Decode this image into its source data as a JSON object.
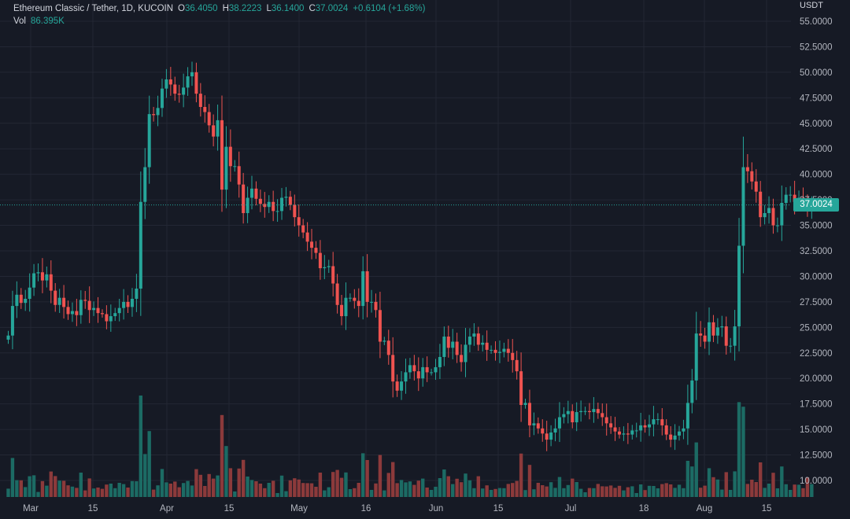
{
  "legend": {
    "symbol": "Ethereum Classic / Tether, 1D, KUCOIN",
    "open_label": "O",
    "open": "36.4050",
    "high_label": "H",
    "high": "38.2223",
    "low_label": "L",
    "low": "36.1400",
    "close_label": "C",
    "close": "37.0024",
    "change": "+0.6104 (+1.68%)",
    "volume_label": "Vol",
    "volume": "86.395K"
  },
  "axis": {
    "currency": "USDT",
    "last_price": "37.0024"
  },
  "colors": {
    "background": "#161a25",
    "grid": "#232734",
    "up": "#26a69a",
    "down": "#ef5350",
    "volume_up": "#1c6b64",
    "volume_down": "#8c3a3b",
    "axis_text": "#b2b5be"
  },
  "chart_data": {
    "type": "candlestick",
    "title": "Ethereum Classic / Tether, 1D, KUCOIN",
    "ylabel": "USDT",
    "ylim": [
      8.8,
      56
    ],
    "y_ticks": [
      "55.0000",
      "52.5000",
      "50.0000",
      "47.5000",
      "45.0000",
      "42.5000",
      "40.0000",
      "37.5000",
      "35.0000",
      "32.5000",
      "30.0000",
      "27.5000",
      "25.0000",
      "22.5000",
      "20.0000",
      "17.5000",
      "15.0000",
      "12.5000",
      "10.0000"
    ],
    "x_ticks": [
      "Mar",
      "15",
      "Apr",
      "15",
      "May",
      "16",
      "Jun",
      "15",
      "Jul",
      "18",
      "Aug",
      "15"
    ],
    "last_price": 37.0024,
    "grid": true,
    "candles_close": [
      24.2,
      27.1,
      28.2,
      27.4,
      27.8,
      28.9,
      30.3,
      30.4,
      29.6,
      30.2,
      28.6,
      27.2,
      27.9,
      27.0,
      26.3,
      26.6,
      26.2,
      27.7,
      27.6,
      26.7,
      26.9,
      26.4,
      26.3,
      25.6,
      26.1,
      26.4,
      26.9,
      27.5,
      27.0,
      27.8,
      28.8,
      37.3,
      40.7,
      45.9,
      45.8,
      46.5,
      48.4,
      49.3,
      48.8,
      47.9,
      47.8,
      48.5,
      49.6,
      50.0,
      47.9,
      46.6,
      46.1,
      44.8,
      43.7,
      45.3,
      38.5,
      42.7,
      40.8,
      40.8,
      39.0,
      36.2,
      37.7,
      38.6,
      37.6,
      37.1,
      36.8,
      37.3,
      36.4,
      36.4,
      37.7,
      37.8,
      37.0,
      35.8,
      35.0,
      34.3,
      33.4,
      32.8,
      32.3,
      30.8,
      30.9,
      31.0,
      29.3,
      27.2,
      26.1,
      27.9,
      27.9,
      27.6,
      27.1,
      30.5,
      27.5,
      27.5,
      26.7,
      23.6,
      23.7,
      22.3,
      19.7,
      18.8,
      19.7,
      20.6,
      21.3,
      20.7,
      20.0,
      21.1,
      20.6,
      20.6,
      21.1,
      22.1,
      24.1,
      23.0,
      23.6,
      22.3,
      21.6,
      23.3,
      24.1,
      24.4,
      23.3,
      23.5,
      22.8,
      22.8,
      22.5,
      22.6,
      22.9,
      22.5,
      21.8,
      20.7,
      17.4,
      17.6,
      15.4,
      15.6,
      15.1,
      14.6,
      14.0,
      14.7,
      15.1,
      16.2,
      16.5,
      16.8,
      15.7,
      16.7,
      16.8,
      16.8,
      16.7,
      17.0,
      16.6,
      16.2,
      15.6,
      15.2,
      14.8,
      14.5,
      14.6,
      14.5,
      14.9,
      14.9,
      15.4,
      15.2,
      15.5,
      16.0,
      16.0,
      15.4,
      14.5,
      14.0,
      14.4,
      14.8,
      15.1,
      17.6,
      19.8,
      24.4,
      24.2,
      23.6,
      25.5,
      24.2,
      25.0,
      25.1,
      23.2,
      23.2,
      25.1,
      33.0,
      40.7,
      40.3,
      39.3,
      38.3,
      35.8,
      36.2,
      36.7,
      35.0,
      35.0,
      37.2,
      38.0,
      38.0,
      37.3,
      37.7,
      37.4,
      36.4,
      37.0
    ]
  }
}
